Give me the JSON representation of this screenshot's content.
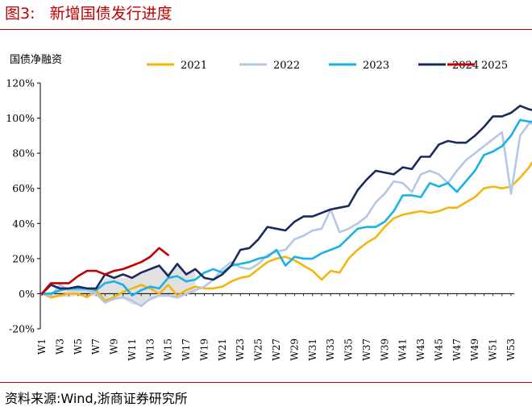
{
  "figure": {
    "title": "图3:   新增国债发行进度",
    "source": "资料来源:Wind,浙商证券研究所"
  },
  "chart_data": {
    "type": "line",
    "ylabel": "国债净融资",
    "xlabel": "",
    "ylim": [
      -20,
      120
    ],
    "y_ticks": [
      -20,
      0,
      20,
      40,
      60,
      80,
      100,
      120
    ],
    "y_tick_labels": [
      "-20%",
      "0%",
      "20%",
      "40%",
      "60%",
      "80%",
      "100%",
      "120%"
    ],
    "x_ticks": [
      "W1",
      "W3",
      "W5",
      "W7",
      "W9",
      "W11",
      "W13",
      "W15",
      "W17",
      "W19",
      "W21",
      "W23",
      "W25",
      "W27",
      "W29",
      "W31",
      "W33",
      "W35",
      "W37",
      "W39",
      "W41",
      "W43",
      "W45",
      "W47",
      "W49",
      "W51",
      "W53"
    ],
    "grid": false,
    "legend_position": "top",
    "series": [
      {
        "name": "2021",
        "color": "#f5b50f",
        "values": [
          0,
          -2,
          -1,
          0,
          0,
          -2,
          2,
          -4,
          -2,
          1,
          3,
          5,
          3,
          0,
          5,
          -1,
          2,
          4,
          3,
          3,
          4,
          7,
          9,
          10,
          14,
          18,
          20,
          21,
          19,
          16,
          13,
          8,
          13,
          12,
          20,
          25,
          29,
          32,
          38,
          43,
          45,
          46,
          47,
          46,
          47,
          49,
          49,
          52,
          55,
          60,
          61,
          60,
          61,
          66,
          72,
          80,
          84,
          84
        ]
      },
      {
        "name": "2022",
        "color": "#b4c7e7",
        "values": [
          0,
          -1,
          5,
          2,
          2,
          2,
          0,
          -5,
          -3,
          -2,
          -4,
          -7,
          -3,
          -1,
          -1,
          -2,
          0,
          2,
          4,
          8,
          14,
          18,
          15,
          14,
          17,
          22,
          24,
          25,
          31,
          33,
          36,
          37,
          48,
          35,
          37,
          40,
          44,
          52,
          57,
          64,
          63,
          58,
          68,
          70,
          68,
          63,
          70,
          76,
          80,
          84,
          88,
          92,
          57,
          90,
          97,
          97,
          97
        ]
      },
      {
        "name": "2023",
        "color": "#19b1e8",
        "values": [
          0,
          0,
          2,
          3,
          3,
          3,
          2,
          6,
          7,
          5,
          -1,
          2,
          4,
          3,
          9,
          10,
          7,
          8,
          12,
          14,
          12,
          16,
          17,
          18,
          20,
          21,
          25,
          16,
          21,
          20,
          20,
          23,
          25,
          27,
          32,
          37,
          38,
          38,
          41,
          47,
          56,
          56,
          55,
          63,
          61,
          63,
          58,
          64,
          70,
          79,
          81,
          84,
          90,
          99,
          98,
          98
        ]
      },
      {
        "name": "2024",
        "color": "#1a2a5e",
        "values": [
          0,
          5,
          3,
          3,
          4,
          3,
          3,
          11,
          9,
          11,
          9,
          12,
          14,
          16,
          10,
          17,
          11,
          14,
          9,
          8,
          11,
          16,
          25,
          26,
          31,
          38,
          37,
          36,
          41,
          44,
          44,
          46,
          48,
          49,
          50,
          59,
          65,
          70,
          69,
          68,
          72,
          71,
          78,
          78,
          85,
          87,
          86,
          86,
          90,
          95,
          101,
          101,
          103,
          107,
          105,
          104,
          104
        ]
      },
      {
        "name": "2025",
        "color": "#c00000",
        "values": [
          0,
          6,
          6,
          6,
          10,
          13,
          13,
          11,
          13,
          14,
          16,
          18,
          21,
          26,
          22
        ]
      }
    ],
    "band": {
      "name": "",
      "color": "#d9d9d9",
      "upper": [
        0,
        0,
        4,
        3,
        3,
        3,
        2,
        9,
        9,
        9,
        9,
        11,
        14,
        16,
        12,
        16,
        12,
        14
      ],
      "lower": [
        0,
        -3,
        -2,
        -2,
        -1,
        -2,
        -1,
        -6,
        -3,
        -3,
        -6,
        -7,
        -4,
        -2,
        -2,
        -3,
        -1,
        0
      ]
    }
  }
}
